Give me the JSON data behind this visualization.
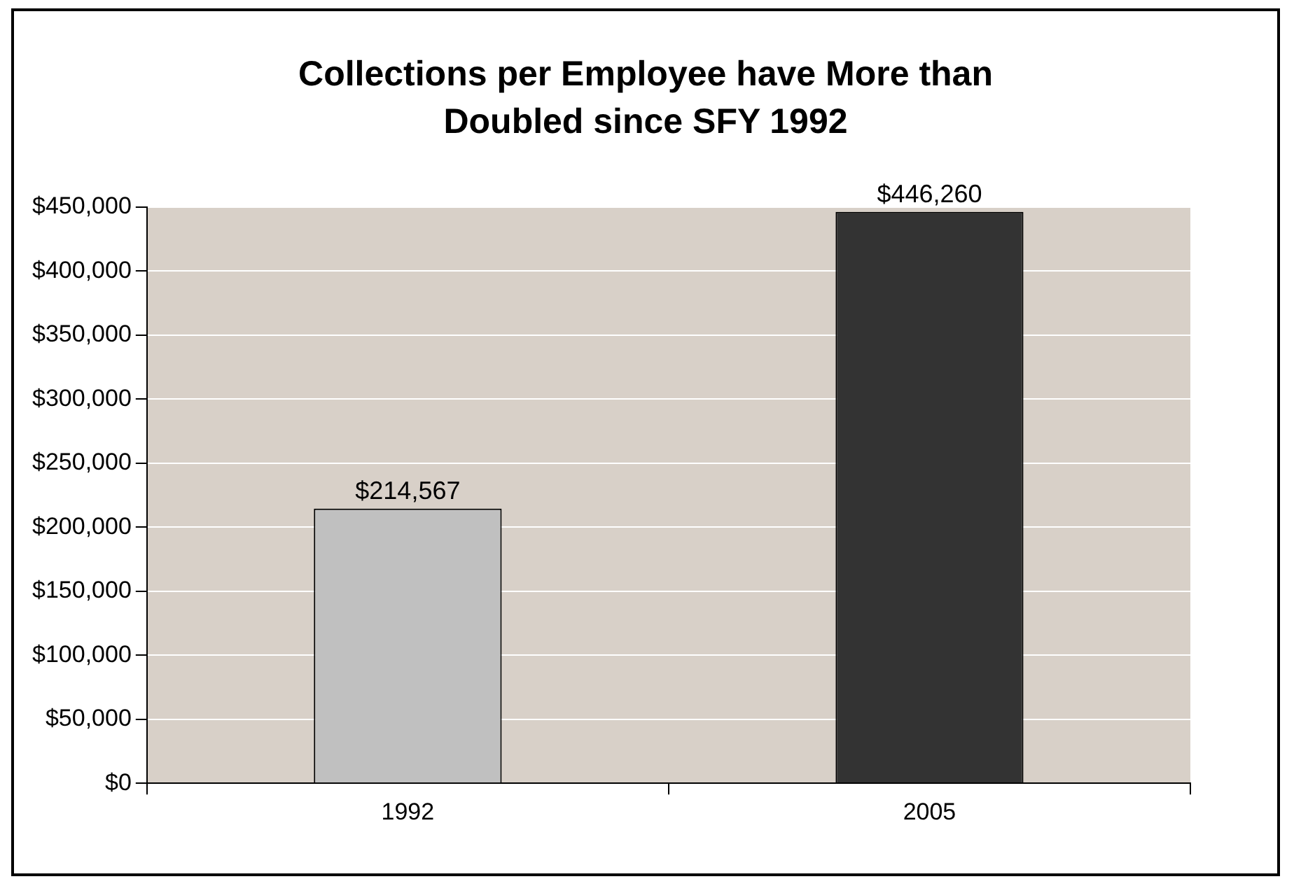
{
  "chart_data": {
    "type": "bar",
    "title": "Collections per Employee have More than Doubled since SFY 1992",
    "categories": [
      "1992",
      "2005"
    ],
    "values": [
      214567,
      446260
    ],
    "colors": [
      "#c0c0c0",
      "#333333"
    ],
    "value_labels": [
      "$214,567",
      "$446,260"
    ],
    "ylim": [
      0,
      450000
    ],
    "yticks": [
      {
        "value": 0,
        "label": "$0"
      },
      {
        "value": 50000,
        "label": "$50,000"
      },
      {
        "value": 100000,
        "label": "$100,000"
      },
      {
        "value": 150000,
        "label": "$150,000"
      },
      {
        "value": 200000,
        "label": "$200,000"
      },
      {
        "value": 250000,
        "label": "$250,000"
      },
      {
        "value": 300000,
        "label": "$300,000"
      },
      {
        "value": 350000,
        "label": "$350,000"
      },
      {
        "value": 400000,
        "label": "$400,000"
      },
      {
        "value": 450000,
        "label": "$450,000"
      }
    ],
    "grid": "y",
    "legend": false
  }
}
